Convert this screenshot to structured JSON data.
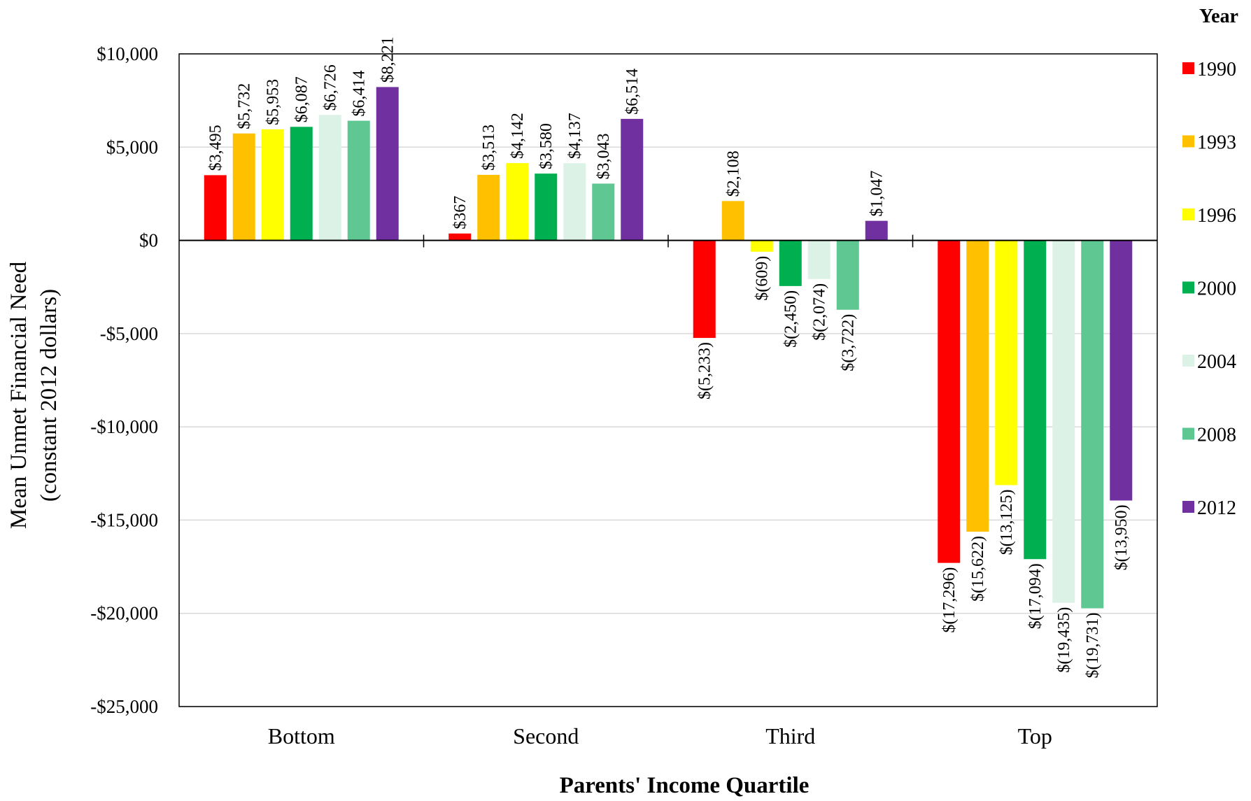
{
  "chart_data": {
    "type": "bar",
    "ylabel": "Mean Unmet Financial Need",
    "ylabel_sub": "(constant 2012 dollars)",
    "xlabel": "Parents' Income Quartile",
    "legend_title": "Year",
    "legend_position": "right",
    "grid": true,
    "ylim": [
      -25000,
      10000
    ],
    "yticks": [
      10000,
      5000,
      0,
      -5000,
      -10000,
      -15000,
      -20000,
      -25000
    ],
    "ytick_labels": [
      "$10,000",
      "$5,000",
      "$0",
      "-$5,000",
      "-$10,000",
      "-$15,000",
      "-$20,000",
      "-$25,000"
    ],
    "categories": [
      "Bottom",
      "Second",
      "Third",
      "Top"
    ],
    "series": [
      {
        "name": "1990",
        "color": "#ff0000",
        "values": [
          3495,
          367,
          -5233,
          -17296
        ],
        "labels": [
          "$3,495",
          "$367",
          "$(5,233)",
          "$(17,296)"
        ]
      },
      {
        "name": "1993",
        "color": "#ffc000",
        "values": [
          5732,
          3513,
          2108,
          -15622
        ],
        "labels": [
          "$5,732",
          "$3,513",
          "$2,108",
          "$(15,622)"
        ]
      },
      {
        "name": "1996",
        "color": "#ffff00",
        "values": [
          5953,
          4142,
          -609,
          -13125
        ],
        "labels": [
          "$5,953",
          "$4,142",
          "$(609)",
          "$(13,125)"
        ]
      },
      {
        "name": "2000",
        "color": "#00b050",
        "values": [
          6087,
          3580,
          -2450,
          -17094
        ],
        "labels": [
          "$6,087",
          "$3,580",
          "$(2,450)",
          "$(17,094)"
        ]
      },
      {
        "name": "2004",
        "color": "#ddf2e7",
        "values": [
          6726,
          4137,
          -2074,
          -19435
        ],
        "labels": [
          "$6,726",
          "$4,137",
          "$(2,074)",
          "$(19,435)"
        ]
      },
      {
        "name": "2008",
        "color": "#5ec792",
        "values": [
          6414,
          3043,
          -3722,
          -19731
        ],
        "labels": [
          "$6,414",
          "$3,043",
          "$(3,722)",
          "$(19,731)"
        ]
      },
      {
        "name": "2012",
        "color": "#7030a0",
        "values": [
          8221,
          6514,
          1047,
          -13950
        ],
        "labels": [
          "$8,221",
          "$6,514",
          "$1,047",
          "$(13,950)"
        ]
      }
    ]
  }
}
